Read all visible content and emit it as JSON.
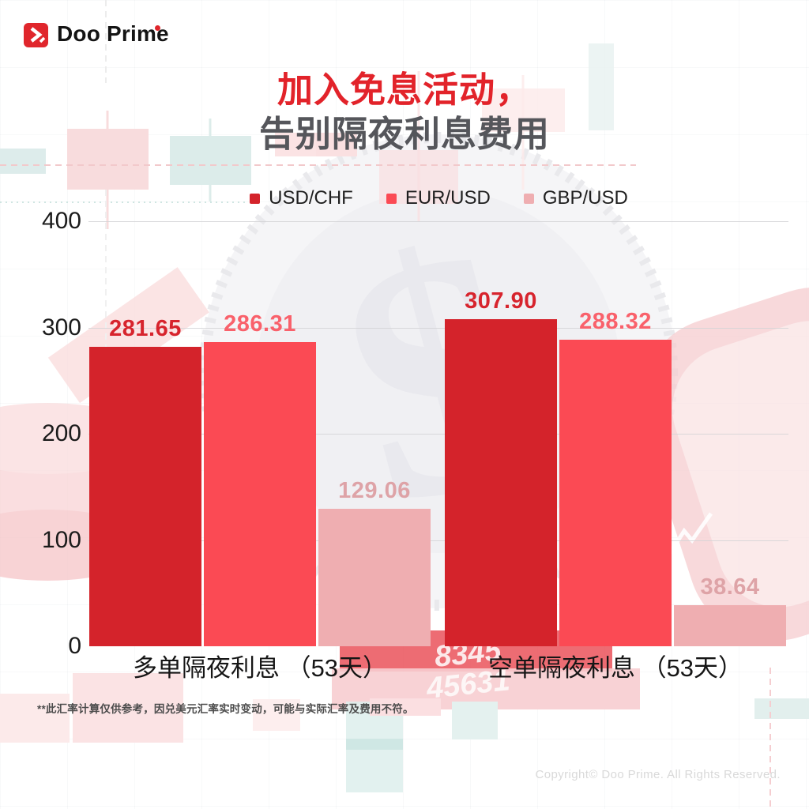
{
  "brand": {
    "name": "Doo Prime",
    "accent_color": "#E0262C"
  },
  "title": {
    "line1": "加入免息活动，",
    "line2": "告别隔夜利息费用",
    "line1_color": "#E2232A",
    "line2_color": "#55565B"
  },
  "chart_data": {
    "type": "bar",
    "categories": [
      "多单隔夜利息 （53天）",
      "空单隔夜利息 （53天）"
    ],
    "series": [
      {
        "name": "USD/CHF",
        "color": "#D4232B",
        "label_color": "#D7242D",
        "values": [
          281.65,
          307.9
        ],
        "value_labels": [
          "281.65",
          "307.90"
        ]
      },
      {
        "name": "EUR/USD",
        "color": "#FB4A54",
        "label_color": "#F9616B",
        "values": [
          286.31,
          288.32
        ],
        "value_labels": [
          "286.31",
          "288.32"
        ]
      },
      {
        "name": "GBP/USD",
        "color": "#EFAEB1",
        "label_color": "#DEA3A7",
        "values": [
          129.06,
          38.64
        ],
        "value_labels": [
          "129.06",
          "38.64"
        ]
      }
    ],
    "y_ticks": [
      0,
      100,
      200,
      300,
      400
    ],
    "ylim": [
      0,
      400
    ],
    "grid": true,
    "legend_position": "top"
  },
  "footnote": "**此汇率计算仅供参考，因兑美元汇率实时变动，可能与实际汇率及费用不符。",
  "copyright": "Copyright© Doo Prime. All Rights Reserved."
}
